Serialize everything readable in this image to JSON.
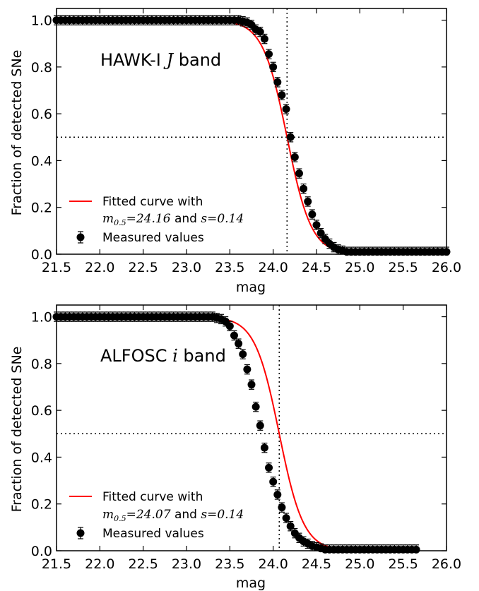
{
  "figure": {
    "panels": [
      {
        "band_label_prefix": "HAWK-I ",
        "band_label_var": "J",
        "band_label_suffix": " band",
        "legend": {
          "curve_line1": "Fitted curve with",
          "curve_m_sym": "m",
          "curve_m_sub": "0.5",
          "curve_m_eq": "=24.16",
          "curve_and": " and ",
          "curve_s_sym": "s",
          "curve_s_eq": "=0.14",
          "points": "Measured values"
        }
      },
      {
        "band_label_prefix": "ALFOSC ",
        "band_label_var": "i",
        "band_label_suffix": " band",
        "legend": {
          "curve_line1": "Fitted curve with",
          "curve_m_sym": "m",
          "curve_m_sub": "0.5",
          "curve_m_eq": "=24.07",
          "curve_and": " and ",
          "curve_s_sym": "s",
          "curve_s_eq": "=0.14",
          "points": "Measured values"
        }
      }
    ]
  },
  "chart_data": [
    {
      "type": "scatter",
      "title": "HAWK-I J band",
      "xlabel": "mag",
      "ylabel": "Fraction of detected SNe",
      "xlim": [
        21.5,
        26.0
      ],
      "ylim": [
        0.0,
        1.05
      ],
      "xticks": [
        "21.5",
        "22.0",
        "22.5",
        "23.0",
        "23.5",
        "24.0",
        "24.5",
        "25.0",
        "25.5",
        "26.0"
      ],
      "yticks": [
        "0.0",
        "0.2",
        "0.4",
        "0.6",
        "0.8",
        "1.0"
      ],
      "colors": {
        "points": "#000000",
        "curve": "#ff0000",
        "reference_lines": "#000000"
      },
      "reference": {
        "x": 24.16,
        "y": 0.5,
        "style": "dotted"
      },
      "fit": {
        "name": "Fitted curve",
        "m05": 24.16,
        "s": 0.14
      },
      "series": [
        {
          "name": "Measured values",
          "x_start": 21.5,
          "x_step": 0.05,
          "values": [
            1.0,
            1.0,
            1.0,
            1.0,
            1.0,
            1.0,
            1.0,
            1.0,
            1.0,
            1.0,
            1.0,
            1.0,
            1.0,
            1.0,
            1.0,
            1.0,
            1.0,
            1.0,
            1.0,
            1.0,
            1.0,
            1.0,
            1.0,
            1.0,
            1.0,
            1.0,
            1.0,
            1.0,
            1.0,
            1.0,
            1.0,
            1.0,
            1.0,
            1.0,
            1.0,
            1.0,
            1.0,
            1.0,
            1.0,
            1.0,
            1.0,
            1.0,
            1.0,
            0.995,
            0.99,
            0.98,
            0.96,
            0.95,
            0.92,
            0.855,
            0.8,
            0.735,
            0.68,
            0.62,
            0.5,
            0.415,
            0.345,
            0.28,
            0.225,
            0.17,
            0.125,
            0.09,
            0.065,
            0.045,
            0.03,
            0.02,
            0.015,
            0.01,
            0.01,
            0.01,
            0.01,
            0.01,
            0.01,
            0.01,
            0.01,
            0.01,
            0.01,
            0.01,
            0.01,
            0.01,
            0.01,
            0.01,
            0.01,
            0.01,
            0.01,
            0.01,
            0.01,
            0.01,
            0.01,
            0.01,
            0.01
          ],
          "error": 0.02
        }
      ]
    },
    {
      "type": "scatter",
      "title": "ALFOSC i band",
      "xlabel": "mag",
      "ylabel": "Fraction of detected SNe",
      "xlim": [
        21.5,
        26.0
      ],
      "ylim": [
        0.0,
        1.05
      ],
      "xticks": [
        "21.5",
        "22.0",
        "22.5",
        "23.0",
        "23.5",
        "24.0",
        "24.5",
        "25.0",
        "25.5",
        "26.0"
      ],
      "yticks": [
        "0.0",
        "0.2",
        "0.4",
        "0.6",
        "0.8",
        "1.0"
      ],
      "colors": {
        "points": "#000000",
        "curve": "#ff0000",
        "reference_lines": "#000000"
      },
      "reference": {
        "x": 24.07,
        "y": 0.5,
        "style": "dotted"
      },
      "fit": {
        "name": "Fitted curve",
        "m05": 24.07,
        "s": 0.14
      },
      "series": [
        {
          "name": "Measured values",
          "x_start": 21.5,
          "x_step": 0.05,
          "values": [
            1.0,
            1.0,
            1.0,
            1.0,
            1.0,
            1.0,
            1.0,
            1.0,
            1.0,
            1.0,
            1.0,
            1.0,
            1.0,
            1.0,
            1.0,
            1.0,
            1.0,
            1.0,
            1.0,
            1.0,
            1.0,
            1.0,
            1.0,
            1.0,
            1.0,
            1.0,
            1.0,
            1.0,
            1.0,
            1.0,
            1.0,
            1.0,
            1.0,
            1.0,
            1.0,
            1.0,
            1.0,
            0.995,
            0.99,
            0.98,
            0.96,
            0.92,
            0.885,
            0.84,
            0.775,
            0.71,
            0.615,
            0.535,
            0.44,
            0.355,
            0.295,
            0.24,
            0.185,
            0.14,
            0.105,
            0.075,
            0.055,
            0.04,
            0.03,
            0.02,
            0.015,
            0.01,
            0.005,
            0.005,
            0.005,
            0.005,
            0.005,
            0.005,
            0.005,
            0.005,
            0.005,
            0.005,
            0.005,
            0.005,
            0.005,
            0.005,
            0.005,
            0.005,
            0.005,
            0.005,
            0.005,
            0.005,
            0.005,
            0.005
          ],
          "error": 0.02
        }
      ]
    }
  ]
}
